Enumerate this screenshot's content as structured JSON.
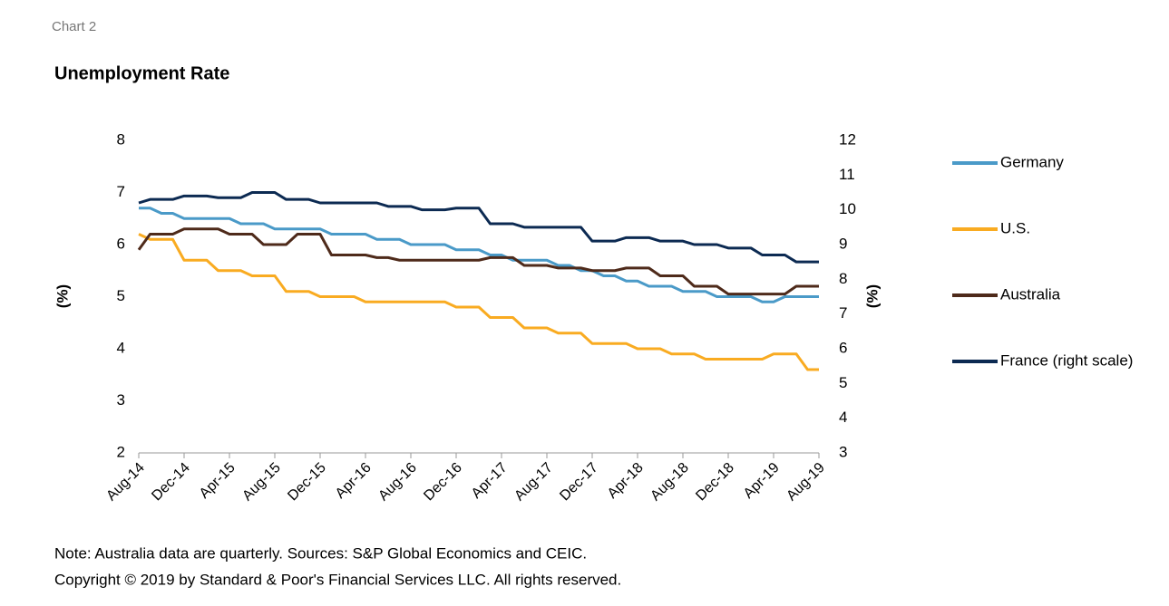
{
  "chart_data": {
    "type": "line",
    "kicker": "Chart 2",
    "title": "Unemployment Rate",
    "ylabel": "(%)",
    "y2label": "(%)",
    "note": "Note: Australia data are quarterly.  Sources: S&P Global Economics and CEIC.",
    "copyright": "Copyright © 2019 by Standard & Poor's Financial Services LLC. All rights reserved.",
    "categories": [
      "Aug-14",
      null,
      null,
      null,
      "Dec-14",
      null,
      null,
      null,
      "Apr-15",
      null,
      null,
      null,
      "Aug-15",
      null,
      null,
      null,
      "Dec-15",
      null,
      null,
      null,
      "Apr-16",
      null,
      null,
      null,
      "Aug-16",
      null,
      null,
      null,
      "Dec-16",
      null,
      null,
      null,
      "Apr-17",
      null,
      null,
      null,
      "Aug-17",
      null,
      null,
      null,
      "Dec-17",
      null,
      null,
      null,
      "Apr-18",
      null,
      null,
      null,
      "Aug-18",
      null,
      null,
      null,
      "Dec-18",
      null,
      null,
      null,
      "Apr-19",
      null,
      null,
      null,
      "Aug-19"
    ],
    "ylim": [
      2,
      8
    ],
    "yticks": [
      2,
      3,
      4,
      5,
      6,
      7,
      8
    ],
    "y2lim": [
      3,
      12
    ],
    "y2ticks": [
      3,
      4,
      5,
      6,
      7,
      8,
      9,
      10,
      11,
      12
    ],
    "grid": false,
    "legend": "right",
    "series": [
      {
        "name": "Germany",
        "color": "#4a9ac8",
        "values": [
          6.7,
          6.7,
          6.6,
          6.6,
          6.5,
          6.5,
          6.5,
          6.5,
          6.5,
          6.4,
          6.4,
          6.4,
          6.3,
          6.3,
          6.3,
          6.3,
          6.3,
          6.2,
          6.2,
          6.2,
          6.2,
          6.1,
          6.1,
          6.1,
          6.0,
          6.0,
          6.0,
          6.0,
          5.9,
          5.9,
          5.9,
          5.8,
          5.8,
          5.7,
          5.7,
          5.7,
          5.7,
          5.6,
          5.6,
          5.5,
          5.5,
          5.4,
          5.4,
          5.3,
          5.3,
          5.2,
          5.2,
          5.2,
          5.1,
          5.1,
          5.1,
          5.0,
          5.0,
          5.0,
          5.0,
          4.9,
          4.9,
          5.0,
          5.0,
          5.0,
          5.0
        ]
      },
      {
        "name": "U.S.",
        "color": "#f9ab21",
        "values": [
          6.2,
          6.1,
          6.1,
          6.1,
          5.7,
          5.7,
          5.7,
          5.5,
          5.5,
          5.5,
          5.4,
          5.4,
          5.4,
          5.1,
          5.1,
          5.1,
          5.0,
          5.0,
          5.0,
          5.0,
          4.9,
          4.9,
          4.9,
          4.9,
          4.9,
          4.9,
          4.9,
          4.9,
          4.8,
          4.8,
          4.8,
          4.6,
          4.6,
          4.6,
          4.4,
          4.4,
          4.4,
          4.3,
          4.3,
          4.3,
          4.1,
          4.1,
          4.1,
          4.1,
          4.0,
          4.0,
          4.0,
          3.9,
          3.9,
          3.9,
          3.8,
          3.8,
          3.8,
          3.8,
          3.8,
          3.8,
          3.9,
          3.9,
          3.9,
          3.6,
          3.6
        ]
      },
      {
        "name": "Australia",
        "color": "#4e2a1a",
        "values": [
          5.9,
          6.2,
          6.2,
          6.2,
          6.3,
          6.3,
          6.3,
          6.3,
          6.2,
          6.2,
          6.2,
          6.0,
          6.0,
          6.0,
          6.2,
          6.2,
          6.2,
          5.8,
          5.8,
          5.8,
          5.8,
          5.75,
          5.75,
          5.7,
          5.7,
          5.7,
          5.7,
          5.7,
          5.7,
          5.7,
          5.7,
          5.75,
          5.75,
          5.75,
          5.6,
          5.6,
          5.6,
          5.55,
          5.55,
          5.55,
          5.5,
          5.5,
          5.5,
          5.55,
          5.55,
          5.55,
          5.4,
          5.4,
          5.4,
          5.2,
          5.2,
          5.2,
          5.05,
          5.05,
          5.05,
          5.05,
          5.05,
          5.05,
          5.2,
          5.2,
          5.2
        ]
      },
      {
        "name": "France (right scale)",
        "color": "#0c2a52",
        "axis": "y2",
        "values": [
          10.2,
          10.3,
          10.3,
          10.3,
          10.4,
          10.4,
          10.4,
          10.35,
          10.35,
          10.35,
          10.5,
          10.5,
          10.5,
          10.3,
          10.3,
          10.3,
          10.2,
          10.2,
          10.2,
          10.2,
          10.2,
          10.2,
          10.1,
          10.1,
          10.1,
          10.0,
          10.0,
          10.0,
          10.05,
          10.05,
          10.05,
          9.6,
          9.6,
          9.6,
          9.5,
          9.5,
          9.5,
          9.5,
          9.5,
          9.5,
          9.1,
          9.1,
          9.1,
          9.2,
          9.2,
          9.2,
          9.1,
          9.1,
          9.1,
          9.0,
          9.0,
          9.0,
          8.9,
          8.9,
          8.9,
          8.7,
          8.7,
          8.7,
          8.5,
          8.5,
          8.5
        ]
      }
    ]
  }
}
